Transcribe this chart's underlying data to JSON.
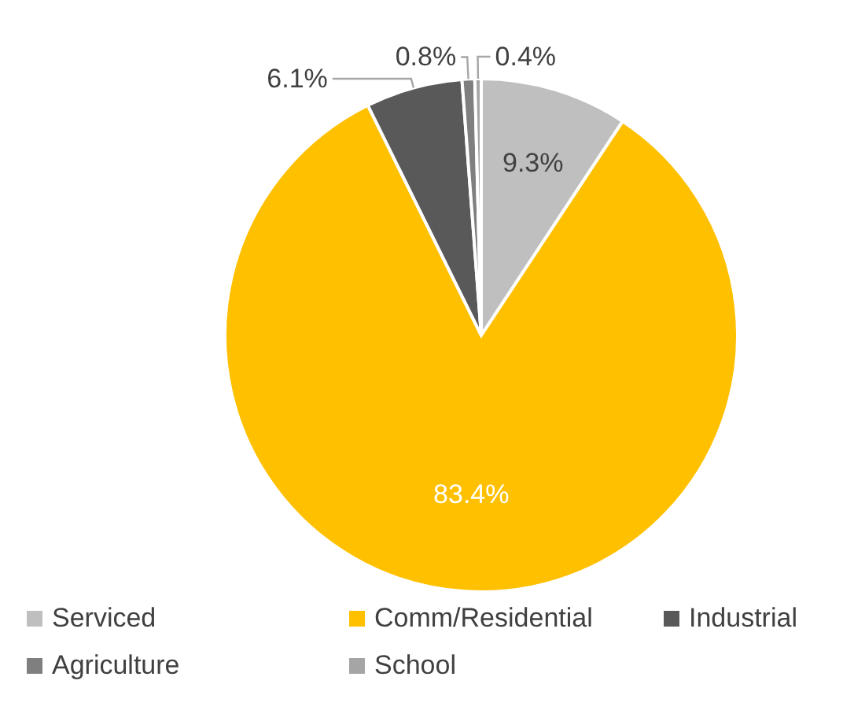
{
  "chart_data": {
    "type": "pie",
    "categories": [
      "Serviced",
      "Comm/Residential",
      "Industrial",
      "Agriculture",
      "School"
    ],
    "values": [
      9.3,
      83.4,
      6.1,
      0.8,
      0.4
    ],
    "colors": [
      "#bfbfbf",
      "#ffc000",
      "#595959",
      "#7f7f7f",
      "#a5a5a5"
    ],
    "value_labels": [
      "9.3%",
      "83.4%",
      "6.1%",
      "0.8%",
      "0.4%"
    ],
    "legend": "bottom"
  }
}
